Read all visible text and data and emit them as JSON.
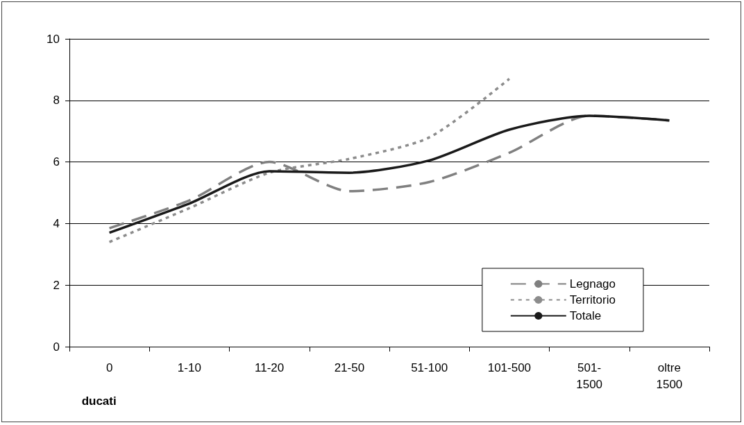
{
  "chart_data": {
    "type": "line",
    "xlabel": "ducati",
    "categories": [
      "0",
      "1-10",
      "11-20",
      "21-50",
      "51-100",
      "101-500",
      "501-\n1500",
      "oltre\n1500"
    ],
    "series": [
      {
        "name": "Legnago",
        "color": "#808080",
        "line_style": "dashed",
        "values": [
          3.85,
          4.75,
          6.0,
          5.05,
          5.35,
          6.3,
          7.5,
          7.35
        ]
      },
      {
        "name": "Territorio",
        "color": "#8c8c8c",
        "line_style": "dotted",
        "values": [
          3.4,
          4.5,
          5.65,
          6.1,
          6.8,
          8.7,
          null,
          null
        ]
      },
      {
        "name": "Totale",
        "color": "#1a1a1a",
        "line_style": "solid",
        "values": [
          3.7,
          4.65,
          5.7,
          5.65,
          6.05,
          7.05,
          7.5,
          7.35
        ]
      }
    ],
    "ylim": [
      0,
      10
    ],
    "yticks": [
      0,
      2,
      4,
      6,
      8,
      10
    ],
    "grid": "y",
    "legend": "bottom right",
    "marker": "none"
  }
}
